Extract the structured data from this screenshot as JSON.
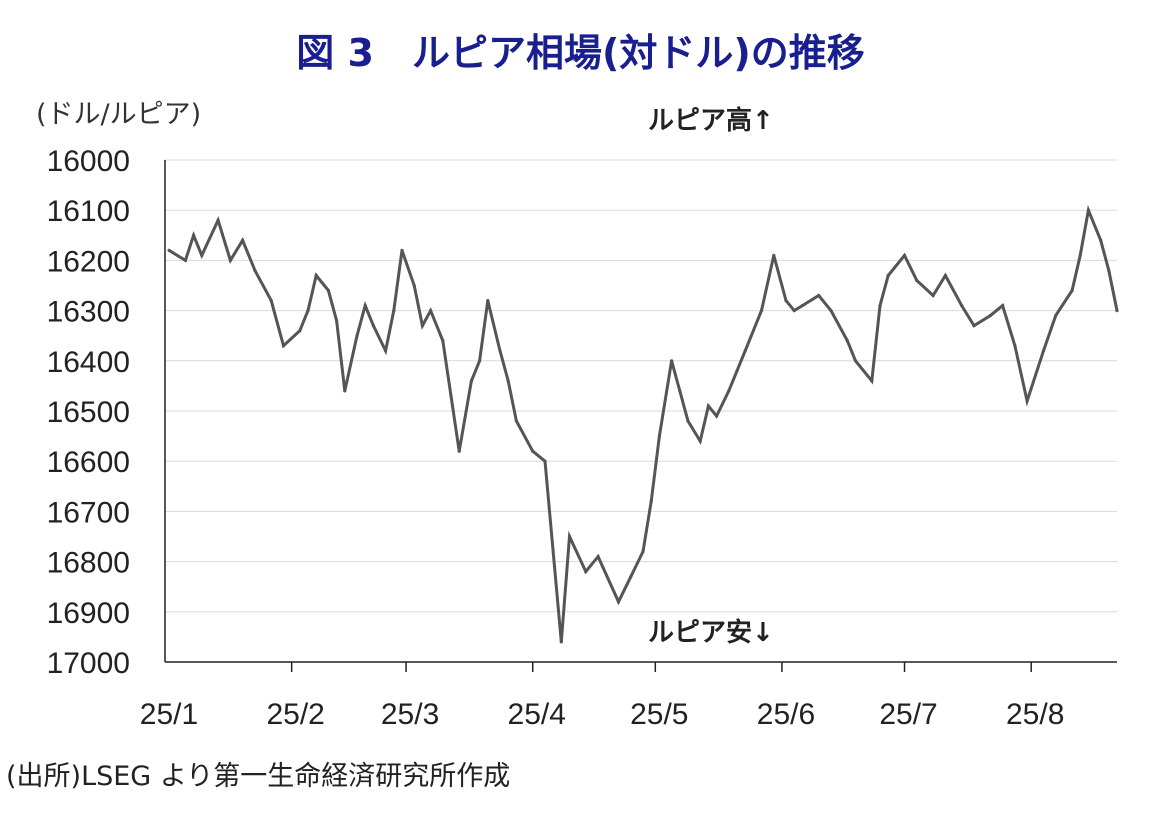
{
  "title": "図 3　ルピア相場(対ドル)の推移",
  "y_unit": "(ドル/ルピア)",
  "annotations": {
    "high": "ルピア高↑",
    "low": "ルピア安↓"
  },
  "source": "(出所)LSEG より第一生命経済研究所作成",
  "chart_data": {
    "type": "line",
    "title": "図 3　ルピア相場(対ドル)の推移",
    "ylabel": "(ドル/ルピア)",
    "y_inverted": true,
    "ylim": [
      16000,
      17000
    ],
    "yticks": [
      16000,
      16100,
      16200,
      16300,
      16400,
      16500,
      16600,
      16700,
      16800,
      16900,
      17000
    ],
    "xlim": [
      "2025-01-01",
      "2025-08-22"
    ],
    "xticks": [
      "25/1",
      "25/2",
      "25/3",
      "25/4",
      "25/5",
      "25/6",
      "25/7",
      "25/8"
    ],
    "grid": "horizontal",
    "line_color": "#555555",
    "series": [
      {
        "values": [
          [
            "2025-01-02",
            16180
          ],
          [
            "2025-01-06",
            16200
          ],
          [
            "2025-01-08",
            16150
          ],
          [
            "2025-01-10",
            16190
          ],
          [
            "2025-01-14",
            16120
          ],
          [
            "2025-01-17",
            16200
          ],
          [
            "2025-01-20",
            16160
          ],
          [
            "2025-01-23",
            16220
          ],
          [
            "2025-01-27",
            16280
          ],
          [
            "2025-01-30",
            16370
          ],
          [
            "2025-02-03",
            16340
          ],
          [
            "2025-02-05",
            16300
          ],
          [
            "2025-02-07",
            16230
          ],
          [
            "2025-02-10",
            16260
          ],
          [
            "2025-02-12",
            16320
          ],
          [
            "2025-02-14",
            16460
          ],
          [
            "2025-02-17",
            16350
          ],
          [
            "2025-02-19",
            16290
          ],
          [
            "2025-02-21",
            16330
          ],
          [
            "2025-02-24",
            16380
          ],
          [
            "2025-02-26",
            16300
          ],
          [
            "2025-02-28",
            16180
          ],
          [
            "2025-03-03",
            16250
          ],
          [
            "2025-03-05",
            16330
          ],
          [
            "2025-03-07",
            16300
          ],
          [
            "2025-03-10",
            16360
          ],
          [
            "2025-03-12",
            16470
          ],
          [
            "2025-03-14",
            16580
          ],
          [
            "2025-03-17",
            16440
          ],
          [
            "2025-03-19",
            16400
          ],
          [
            "2025-03-21",
            16280
          ],
          [
            "2025-03-24",
            16380
          ],
          [
            "2025-03-26",
            16440
          ],
          [
            "2025-03-28",
            16520
          ],
          [
            "2025-04-01",
            16580
          ],
          [
            "2025-04-04",
            16600
          ],
          [
            "2025-04-08",
            16960
          ],
          [
            "2025-04-10",
            16750
          ],
          [
            "2025-04-14",
            16820
          ],
          [
            "2025-04-17",
            16790
          ],
          [
            "2025-04-22",
            16880
          ],
          [
            "2025-04-25",
            16830
          ],
          [
            "2025-04-28",
            16780
          ],
          [
            "2025-04-30",
            16680
          ],
          [
            "2025-05-02",
            16550
          ],
          [
            "2025-05-05",
            16400
          ],
          [
            "2025-05-07",
            16460
          ],
          [
            "2025-05-09",
            16520
          ],
          [
            "2025-05-12",
            16560
          ],
          [
            "2025-05-14",
            16490
          ],
          [
            "2025-05-16",
            16510
          ],
          [
            "2025-05-19",
            16460
          ],
          [
            "2025-05-21",
            16420
          ],
          [
            "2025-05-23",
            16380
          ],
          [
            "2025-05-27",
            16300
          ],
          [
            "2025-05-30",
            16190
          ],
          [
            "2025-06-02",
            16280
          ],
          [
            "2025-06-04",
            16300
          ],
          [
            "2025-06-06",
            16290
          ],
          [
            "2025-06-10",
            16270
          ],
          [
            "2025-06-13",
            16300
          ],
          [
            "2025-06-17",
            16360
          ],
          [
            "2025-06-19",
            16400
          ],
          [
            "2025-06-23",
            16440
          ],
          [
            "2025-06-25",
            16290
          ],
          [
            "2025-06-27",
            16230
          ],
          [
            "2025-07-01",
            16190
          ],
          [
            "2025-07-04",
            16240
          ],
          [
            "2025-07-08",
            16270
          ],
          [
            "2025-07-11",
            16230
          ],
          [
            "2025-07-15",
            16290
          ],
          [
            "2025-07-18",
            16330
          ],
          [
            "2025-07-22",
            16310
          ],
          [
            "2025-07-25",
            16290
          ],
          [
            "2025-07-28",
            16370
          ],
          [
            "2025-07-31",
            16480
          ],
          [
            "2025-08-04",
            16380
          ],
          [
            "2025-08-07",
            16310
          ],
          [
            "2025-08-11",
            16260
          ],
          [
            "2025-08-13",
            16190
          ],
          [
            "2025-08-15",
            16100
          ],
          [
            "2025-08-18",
            16160
          ],
          [
            "2025-08-20",
            16220
          ],
          [
            "2025-08-22",
            16300
          ]
        ]
      }
    ]
  }
}
